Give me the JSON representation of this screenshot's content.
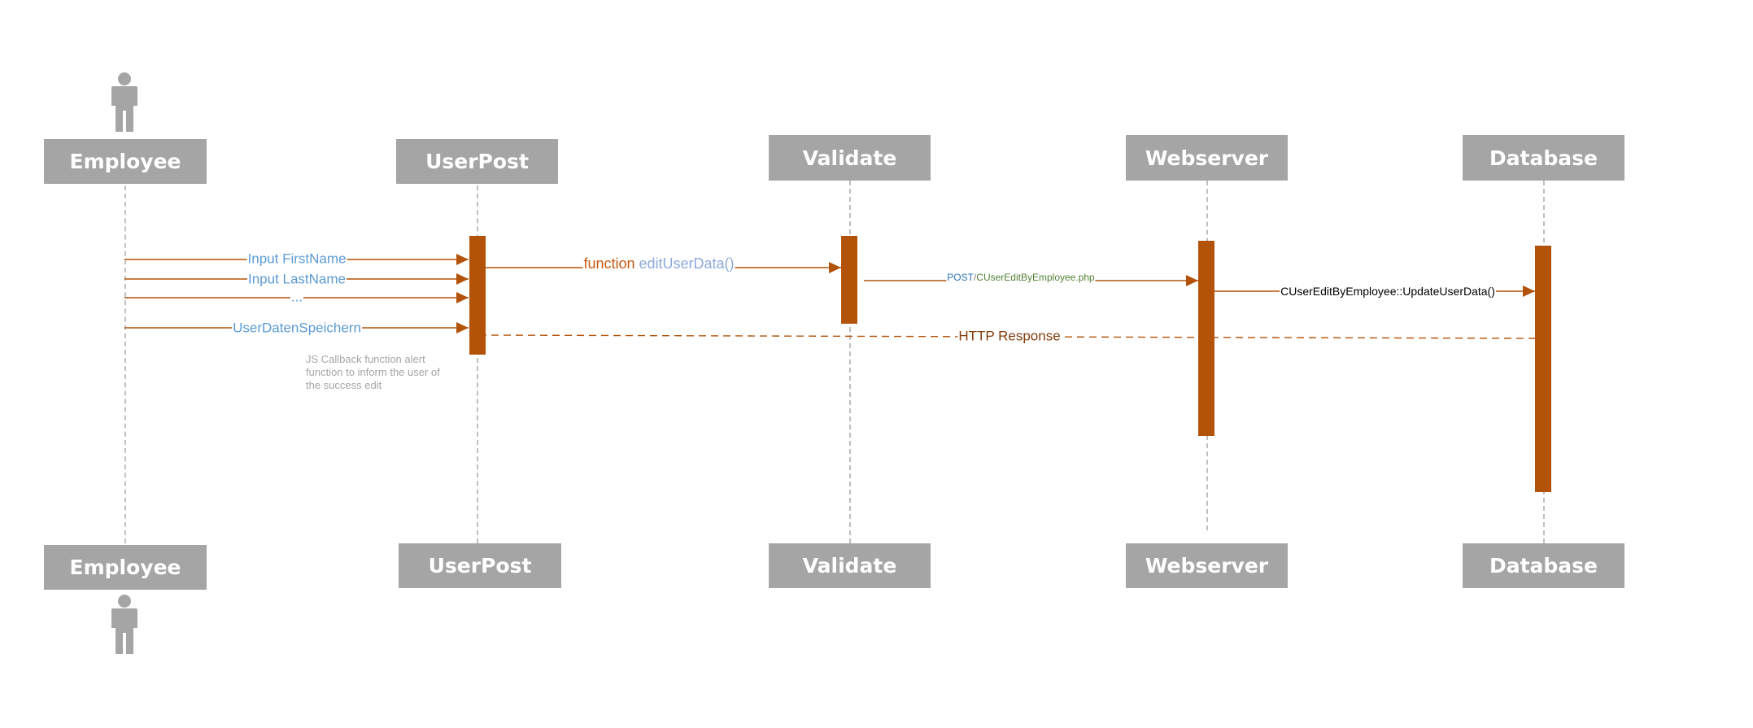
{
  "participants": [
    {
      "id": "employee",
      "name": "Employee",
      "actor": true
    },
    {
      "id": "userpost",
      "name": "UserPost"
    },
    {
      "id": "validate",
      "name": "Validate"
    },
    {
      "id": "webserver",
      "name": "Webserver"
    },
    {
      "id": "database",
      "name": "Database"
    }
  ],
  "messages": {
    "input_firstname": "Input FirstName",
    "input_lastname": "Input LastName",
    "ellipsis": "...",
    "user_daten_speichern": "UserDatenSpeichern",
    "func_keyword": "function",
    "func_name": "editUserData()",
    "post_method": "POST",
    "post_slash": "/",
    "post_path": "CUserEditByEmployee.php",
    "update_user_data": "CUserEditByEmployee::UpdateUserData()",
    "http_response": "HTTP Response"
  },
  "note": {
    "line1": "JS Callback function alert",
    "line2": "function to inform the user of",
    "line3": "the success edit"
  },
  "colors": {
    "box": "#a5a5a5",
    "activation": "#b35309",
    "arrow": "#b35309",
    "lifeline": "#bfbfbf",
    "label_blue": "#5b9bd5",
    "http_response": "#843c0c"
  },
  "icons": {
    "actor": "person-icon"
  }
}
